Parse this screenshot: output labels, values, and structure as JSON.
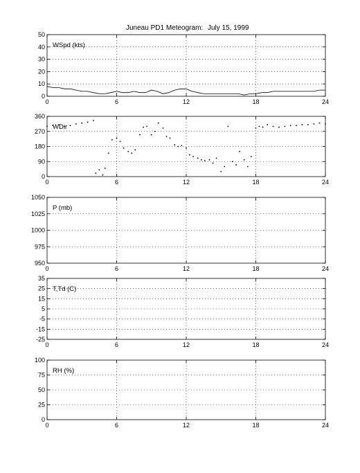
{
  "figure": {
    "title": "Juneau PD1 Meteogram:",
    "date": "July 15, 1999"
  },
  "chart_data": [
    {
      "type": "line",
      "label": "WSpd (kts)",
      "ylim": [
        0,
        50
      ],
      "yticks": [
        0,
        10,
        20,
        30,
        40,
        50
      ],
      "xlim": [
        0,
        24
      ],
      "xticks": [
        0,
        6,
        12,
        18,
        24
      ],
      "grid": true,
      "series": [
        {
          "x": [
            0,
            0.5,
            1,
            1.5,
            2,
            2.5,
            3,
            3.5,
            4,
            4.5,
            5,
            5.5,
            6,
            6.5,
            7,
            7.5,
            8,
            8.5,
            9,
            9.5,
            10,
            10.5,
            11,
            11.5,
            12,
            12.5,
            13,
            13.5,
            14,
            14.5,
            15,
            15.5,
            16,
            16.5,
            17,
            17.5,
            18,
            18.5,
            19,
            19.5,
            20,
            20.5,
            21,
            21.5,
            22,
            22.5,
            23,
            23.5,
            24
          ],
          "y": [
            8,
            7,
            7,
            6,
            6,
            5,
            4,
            4,
            3,
            2,
            2,
            3,
            4,
            3,
            3,
            4,
            3,
            3,
            5,
            4,
            2,
            3,
            5,
            6,
            6,
            4,
            3,
            2,
            2,
            2,
            2,
            2,
            2,
            2,
            1,
            2,
            2,
            3,
            3,
            4,
            4,
            4,
            4,
            4,
            4,
            4,
            4,
            5,
            5
          ]
        }
      ]
    },
    {
      "type": "scatter",
      "label": "WDir",
      "ylim": [
        0,
        360
      ],
      "yticks": [
        0,
        90,
        180,
        270,
        360
      ],
      "xlim": [
        0,
        24
      ],
      "xticks": [
        0,
        6,
        12,
        18,
        24
      ],
      "grid": true,
      "series": [
        {
          "x": [
            0,
            0.5,
            1,
            1.5,
            2,
            2.5,
            3,
            3.5,
            4,
            4.2,
            4.5,
            4.8,
            5.0,
            5.3,
            5.6,
            6.0,
            6.3,
            6.6,
            7.0,
            7.3,
            7.6,
            8.0,
            8.3,
            8.6,
            9.0,
            9.3,
            9.6,
            10.0,
            10.3,
            10.6,
            11.0,
            11.3,
            11.6,
            12.0,
            12.3,
            12.6,
            13.0,
            13.3,
            13.6,
            14.0,
            14.3,
            14.6,
            15.0,
            15.3,
            15.6,
            16.0,
            16.3,
            16.6,
            17.0,
            17.3,
            17.6,
            18.0,
            18.3,
            18.6,
            19.0,
            19.5,
            20,
            20.5,
            21,
            21.5,
            22,
            22.5,
            23,
            23.5,
            24
          ],
          "y": [
            300,
            305,
            310,
            300,
            305,
            315,
            320,
            325,
            335,
            20,
            40,
            10,
            50,
            140,
            220,
            230,
            210,
            170,
            150,
            140,
            160,
            250,
            295,
            300,
            250,
            270,
            320,
            290,
            240,
            230,
            190,
            180,
            185,
            170,
            130,
            120,
            110,
            100,
            95,
            100,
            80,
            110,
            30,
            60,
            300,
            90,
            70,
            150,
            100,
            60,
            120,
            290,
            300,
            295,
            310,
            300,
            295,
            300,
            305,
            305,
            310,
            310,
            315,
            320,
            315
          ]
        }
      ]
    },
    {
      "type": "line",
      "label": "P (mb)",
      "ylim": [
        950,
        1050
      ],
      "yticks": [
        950,
        975,
        1000,
        1025,
        1050
      ],
      "xlim": [
        0,
        24
      ],
      "xticks": [
        0,
        6,
        12,
        18,
        24
      ],
      "grid": true,
      "series": []
    },
    {
      "type": "line",
      "label": "T,Td (C)",
      "ylim": [
        -25,
        35
      ],
      "yticks": [
        -25,
        -15,
        -5,
        5,
        15,
        25,
        35
      ],
      "xlim": [
        0,
        24
      ],
      "xticks": [
        0,
        6,
        12,
        18,
        24
      ],
      "grid": true,
      "series": []
    },
    {
      "type": "line",
      "label": "RH (%)",
      "ylim": [
        0,
        100
      ],
      "yticks": [
        0,
        25,
        50,
        75,
        100
      ],
      "xlim": [
        0,
        24
      ],
      "xticks": [
        0,
        6,
        12,
        18,
        24
      ],
      "grid": true,
      "series": []
    }
  ]
}
